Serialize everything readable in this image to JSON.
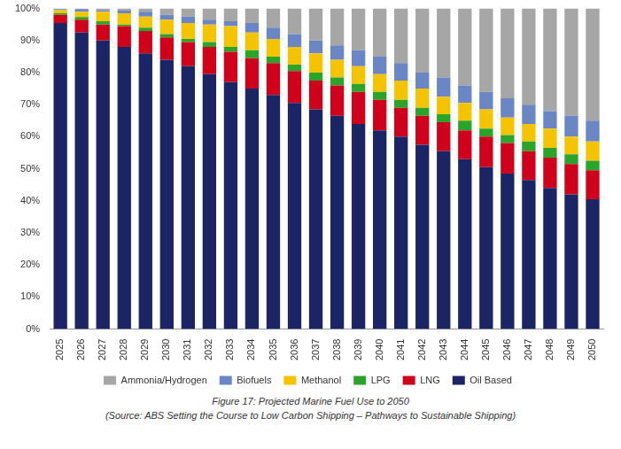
{
  "chart_data": {
    "type": "bar",
    "title": "Figure 17: Projected Marine Fuel Use to 2050",
    "subtitle": "(Source: ABS Setting the Course to Low Carbon Shipping – Pathways to Sustainable Shipping)",
    "stacked": true,
    "grid": false,
    "legend": "bottom",
    "categories": [
      "2025",
      "2026",
      "2027",
      "2028",
      "2029",
      "2030",
      "2031",
      "2032",
      "2033",
      "2034",
      "2035",
      "2036",
      "2037",
      "2038",
      "2039",
      "2040",
      "2041",
      "2042",
      "2043",
      "2044",
      "2045",
      "2046",
      "2047",
      "2048",
      "2049",
      "2050"
    ],
    "series": [
      {
        "name": "Oil Based",
        "color": "#1b2566",
        "values": [
          95.5,
          92.5,
          90,
          88,
          86,
          84,
          82,
          79.5,
          77,
          75,
          73,
          70.5,
          68.5,
          66.5,
          64,
          62,
          60,
          57.5,
          55.5,
          53,
          50.5,
          48.5,
          46.5,
          44,
          42,
          40.5
        ]
      },
      {
        "name": "LNG",
        "color": "#d0021b",
        "values": [
          2.5,
          4,
          5,
          6.5,
          7,
          7,
          7.5,
          8.5,
          9.5,
          9.5,
          10,
          10,
          9,
          9.5,
          10,
          9.5,
          9,
          9,
          9,
          9,
          9.5,
          9.5,
          9,
          9.5,
          9.5,
          9
        ]
      },
      {
        "name": "LPG",
        "color": "#2aa52a",
        "values": [
          0.5,
          0.8,
          1,
          0.5,
          1,
          1,
          1,
          1.5,
          1.5,
          2.5,
          2,
          2,
          2.5,
          2.5,
          2.5,
          2.5,
          2.5,
          2.5,
          2.5,
          3,
          2.5,
          2.5,
          3,
          3,
          3,
          3
        ]
      },
      {
        "name": "Methanol",
        "color": "#f5c400",
        "values": [
          1,
          1.7,
          3,
          3.5,
          3.5,
          4.5,
          5,
          5.5,
          6.5,
          5.5,
          5.5,
          5.5,
          6,
          5.5,
          5.5,
          5.5,
          6,
          6,
          5.5,
          5.5,
          6,
          5.5,
          5.5,
          6,
          5.5,
          6
        ]
      },
      {
        "name": "Biofuels",
        "color": "#6a86c4",
        "values": [
          0.3,
          0.8,
          0.5,
          1,
          1.5,
          1.5,
          2,
          1.5,
          1.5,
          3,
          3.5,
          4,
          4,
          4.5,
          5,
          5.5,
          5.5,
          5,
          6,
          5.5,
          5.5,
          6,
          6,
          5.5,
          6.5,
          6.5
        ]
      },
      {
        "name": "Ammonia/Hydrogen",
        "color": "#a6a6a6",
        "values": [
          0.2,
          0.2,
          0.5,
          0.5,
          1,
          2,
          2.5,
          3.5,
          4,
          4.5,
          6,
          8,
          10,
          11.5,
          13,
          15,
          17,
          20,
          21.5,
          24,
          26,
          28,
          30,
          32,
          33.5,
          35
        ]
      }
    ],
    "ylim": [
      0,
      100
    ],
    "yticks": [
      {
        "value": 0,
        "label": "0%"
      },
      {
        "value": 10,
        "label": "10%"
      },
      {
        "value": 20,
        "label": "20%"
      },
      {
        "value": 30,
        "label": "30%"
      },
      {
        "value": 40,
        "label": "40%"
      },
      {
        "value": 50,
        "label": "50%"
      },
      {
        "value": 60,
        "label": "60%"
      },
      {
        "value": 70,
        "label": "70%"
      },
      {
        "value": 80,
        "label": "80%"
      },
      {
        "value": 90,
        "label": "90%"
      },
      {
        "value": 100,
        "label": "100%"
      }
    ]
  }
}
